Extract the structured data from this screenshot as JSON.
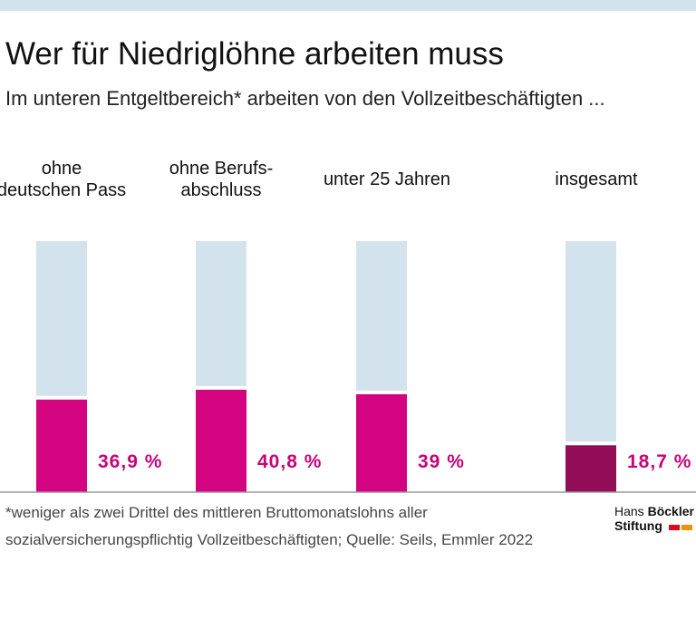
{
  "chart_data": {
    "type": "bar",
    "title": "Wer für Niedriglöhne arbeiten muss",
    "subtitle": "Im unteren Entgeltbereich* arbeiten von den Vollzeitbeschäftigten ...",
    "categories": [
      "ohne\ndeutschen Pass",
      "ohne Berufs-\nabschluss",
      "unter 25 Jahren",
      "insgesamt"
    ],
    "values": [
      36.9,
      40.8,
      39,
      18.7
    ],
    "value_labels": [
      "36,9 %",
      "40,8 %",
      "39 %",
      "18,7 %"
    ],
    "colors": [
      "#d4037f",
      "#d4037f",
      "#d4037f",
      "#920d58"
    ],
    "label_color": "#c8037a",
    "background_color": "#d3e3ed",
    "ylim": [
      0,
      100
    ],
    "footnote": [
      "*weniger als zwei Drittel des mittleren Bruttomonatslohns aller",
      "sozialversicherungspflichtig Vollzeitbeschäftigten; Quelle: Seils, Emmler 2022"
    ]
  },
  "logo": {
    "name": "Hans",
    "name_bold": "Böckler",
    "org": "Stiftung"
  }
}
